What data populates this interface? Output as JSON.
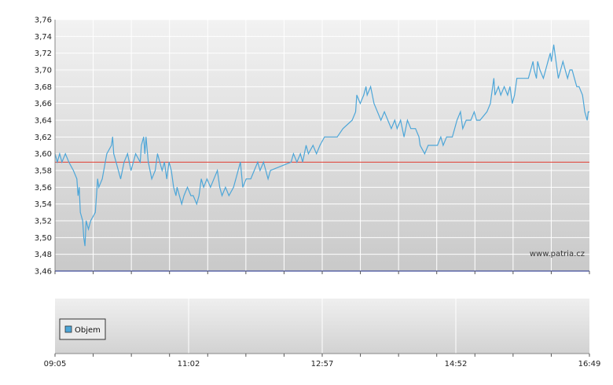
{
  "watermark": "www.patria.cz",
  "legend": {
    "label": "Objem",
    "color": "#4da6d8"
  },
  "colors": {
    "price_line": "#4da6d8",
    "reference_line": "#e03c31",
    "axis": "#1a2a8a"
  },
  "chart_data": [
    {
      "type": "line",
      "title": "",
      "xlabel": "",
      "ylabel": "",
      "ylim": [
        3.46,
        3.76
      ],
      "y_ticks": [
        "3,76",
        "3,74",
        "3,72",
        "3,70",
        "3,68",
        "3,66",
        "3,64",
        "3,62",
        "3,60",
        "3,58",
        "3,56",
        "3,54",
        "3,52",
        "3,50",
        "3,48",
        "3,46"
      ],
      "x_time_range": [
        "09:05",
        "16:49"
      ],
      "reference_line": {
        "value": 3.59
      },
      "grid": true,
      "series": [
        {
          "name": "",
          "points": [
            [
              "09:05",
              3.6
            ],
            [
              "09:07",
              3.59
            ],
            [
              "09:09",
              3.6
            ],
            [
              "09:11",
              3.59
            ],
            [
              "09:14",
              3.6
            ],
            [
              "09:17",
              3.59
            ],
            [
              "09:21",
              3.58
            ],
            [
              "09:24",
              3.57
            ],
            [
              "09:25",
              3.55
            ],
            [
              "09:26",
              3.56
            ],
            [
              "09:27",
              3.53
            ],
            [
              "09:29",
              3.52
            ],
            [
              "09:30",
              3.5
            ],
            [
              "09:31",
              3.49
            ],
            [
              "09:32",
              3.52
            ],
            [
              "09:34",
              3.51
            ],
            [
              "09:36",
              3.52
            ],
            [
              "09:40",
              3.53
            ],
            [
              "09:42",
              3.57
            ],
            [
              "09:43",
              3.56
            ],
            [
              "09:46",
              3.57
            ],
            [
              "09:50",
              3.6
            ],
            [
              "09:54",
              3.61
            ],
            [
              "09:55",
              3.62
            ],
            [
              "09:56",
              3.6
            ],
            [
              "09:58",
              3.59
            ],
            [
              "10:00",
              3.58
            ],
            [
              "10:02",
              3.57
            ],
            [
              "10:05",
              3.59
            ],
            [
              "10:08",
              3.6
            ],
            [
              "10:11",
              3.58
            ],
            [
              "10:15",
              3.6
            ],
            [
              "10:19",
              3.59
            ],
            [
              "10:20",
              3.61
            ],
            [
              "10:22",
              3.62
            ],
            [
              "10:23",
              3.6
            ],
            [
              "10:24",
              3.62
            ],
            [
              "10:26",
              3.59
            ],
            [
              "10:29",
              3.57
            ],
            [
              "10:32",
              3.58
            ],
            [
              "10:34",
              3.6
            ],
            [
              "10:38",
              3.58
            ],
            [
              "10:40",
              3.59
            ],
            [
              "10:42",
              3.57
            ],
            [
              "10:44",
              3.59
            ],
            [
              "10:46",
              3.58
            ],
            [
              "10:48",
              3.56
            ],
            [
              "10:50",
              3.55
            ],
            [
              "10:51",
              3.56
            ],
            [
              "10:53",
              3.55
            ],
            [
              "10:55",
              3.54
            ],
            [
              "10:57",
              3.55
            ],
            [
              "11:00",
              3.56
            ],
            [
              "11:03",
              3.55
            ],
            [
              "11:05",
              3.55
            ],
            [
              "11:08",
              3.54
            ],
            [
              "11:10",
              3.55
            ],
            [
              "11:12",
              3.57
            ],
            [
              "11:14",
              3.56
            ],
            [
              "11:17",
              3.57
            ],
            [
              "11:20",
              3.56
            ],
            [
              "11:23",
              3.57
            ],
            [
              "11:26",
              3.58
            ],
            [
              "11:28",
              3.56
            ],
            [
              "11:30",
              3.55
            ],
            [
              "11:33",
              3.56
            ],
            [
              "11:36",
              3.55
            ],
            [
              "11:40",
              3.56
            ],
            [
              "11:44",
              3.58
            ],
            [
              "11:46",
              3.59
            ],
            [
              "11:48",
              3.56
            ],
            [
              "11:51",
              3.57
            ],
            [
              "11:55",
              3.57
            ],
            [
              "11:58",
              3.58
            ],
            [
              "12:01",
              3.59
            ],
            [
              "12:03",
              3.58
            ],
            [
              "12:06",
              3.59
            ],
            [
              "12:08",
              3.58
            ],
            [
              "12:10",
              3.57
            ],
            [
              "12:12",
              3.58
            ],
            [
              "12:30",
              3.59
            ],
            [
              "12:32",
              3.6
            ],
            [
              "12:35",
              3.59
            ],
            [
              "12:38",
              3.6
            ],
            [
              "12:40",
              3.59
            ],
            [
              "12:43",
              3.61
            ],
            [
              "12:45",
              3.6
            ],
            [
              "12:49",
              3.61
            ],
            [
              "12:52",
              3.6
            ],
            [
              "12:55",
              3.61
            ],
            [
              "12:59",
              3.62
            ],
            [
              "13:10",
              3.62
            ],
            [
              "13:15",
              3.63
            ],
            [
              "13:23",
              3.64
            ],
            [
              "13:26",
              3.65
            ],
            [
              "13:27",
              3.67
            ],
            [
              "13:30",
              3.66
            ],
            [
              "13:33",
              3.67
            ],
            [
              "13:35",
              3.68
            ],
            [
              "13:36",
              3.67
            ],
            [
              "13:39",
              3.68
            ],
            [
              "13:42",
              3.66
            ],
            [
              "13:45",
              3.65
            ],
            [
              "13:48",
              3.64
            ],
            [
              "13:51",
              3.65
            ],
            [
              "13:54",
              3.64
            ],
            [
              "13:57",
              3.63
            ],
            [
              "14:00",
              3.64
            ],
            [
              "14:02",
              3.63
            ],
            [
              "14:05",
              3.64
            ],
            [
              "14:08",
              3.62
            ],
            [
              "14:11",
              3.64
            ],
            [
              "14:14",
              3.63
            ],
            [
              "14:18",
              3.63
            ],
            [
              "14:21",
              3.62
            ],
            [
              "14:22",
              3.61
            ],
            [
              "14:26",
              3.6
            ],
            [
              "14:29",
              3.61
            ],
            [
              "14:37",
              3.61
            ],
            [
              "14:40",
              3.62
            ],
            [
              "14:42",
              3.61
            ],
            [
              "14:45",
              3.62
            ],
            [
              "14:50",
              3.62
            ],
            [
              "14:54",
              3.64
            ],
            [
              "14:57",
              3.65
            ],
            [
              "14:59",
              3.63
            ],
            [
              "15:02",
              3.64
            ],
            [
              "15:06",
              3.64
            ],
            [
              "15:09",
              3.65
            ],
            [
              "15:11",
              3.64
            ],
            [
              "15:14",
              3.64
            ],
            [
              "15:20",
              3.65
            ],
            [
              "15:23",
              3.66
            ],
            [
              "15:24",
              3.67
            ],
            [
              "15:26",
              3.69
            ],
            [
              "15:27",
              3.67
            ],
            [
              "15:30",
              3.68
            ],
            [
              "15:32",
              3.67
            ],
            [
              "15:35",
              3.68
            ],
            [
              "15:38",
              3.67
            ],
            [
              "15:40",
              3.68
            ],
            [
              "15:42",
              3.66
            ],
            [
              "15:44",
              3.67
            ],
            [
              "15:46",
              3.69
            ],
            [
              "15:56",
              3.69
            ],
            [
              "15:58",
              3.7
            ],
            [
              "16:00",
              3.71
            ],
            [
              "16:01",
              3.7
            ],
            [
              "16:03",
              3.69
            ],
            [
              "16:04",
              3.71
            ],
            [
              "16:06",
              3.7
            ],
            [
              "16:09",
              3.69
            ],
            [
              "16:11",
              3.7
            ],
            [
              "16:13",
              3.71
            ],
            [
              "16:15",
              3.72
            ],
            [
              "16:16",
              3.71
            ],
            [
              "16:18",
              3.73
            ],
            [
              "16:20",
              3.71
            ],
            [
              "16:22",
              3.69
            ],
            [
              "16:24",
              3.7
            ],
            [
              "16:26",
              3.71
            ],
            [
              "16:28",
              3.7
            ],
            [
              "16:30",
              3.69
            ],
            [
              "16:32",
              3.7
            ],
            [
              "16:34",
              3.7
            ],
            [
              "16:36",
              3.69
            ],
            [
              "16:38",
              3.68
            ],
            [
              "16:40",
              3.68
            ],
            [
              "16:43",
              3.67
            ],
            [
              "16:44",
              3.66
            ],
            [
              "16:45",
              3.65
            ],
            [
              "16:47",
              3.64
            ],
            [
              "16:48",
              3.65
            ],
            [
              "16:49",
              3.65
            ]
          ]
        }
      ]
    },
    {
      "type": "bar",
      "title": "",
      "legend": [
        "Objem"
      ],
      "x_tick_labels": [
        "09:05",
        "11:02",
        "12:57",
        "14:52",
        "16:49"
      ],
      "values": []
    }
  ]
}
